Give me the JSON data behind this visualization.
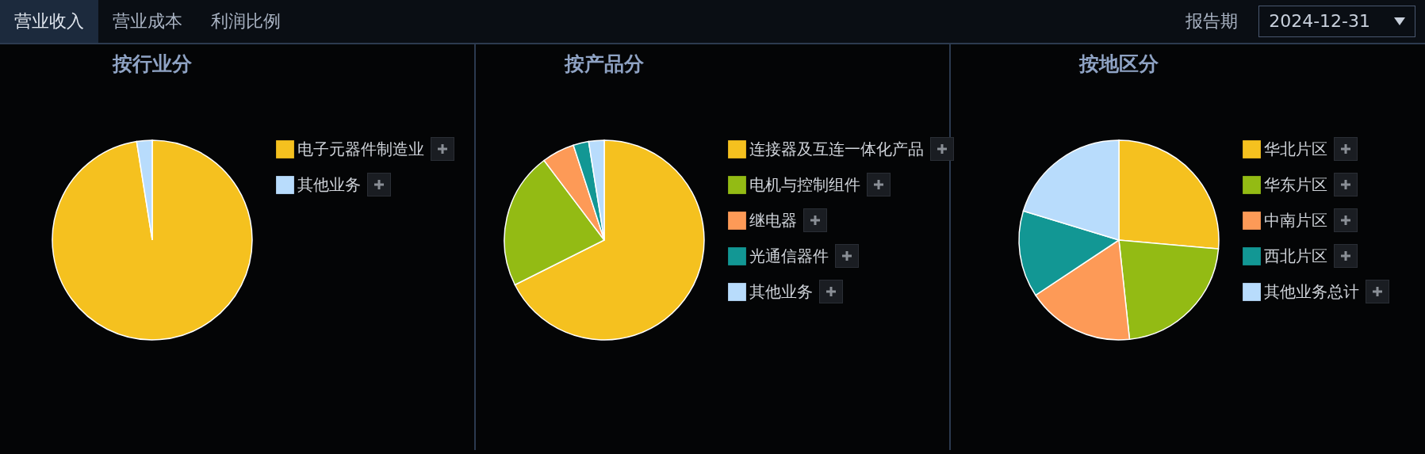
{
  "chart_data": [
    {
      "type": "other",
      "annotations": [
        "营业收入",
        "营业成本",
        "利润比例",
        "报告期",
        "2024-12-31"
      ]
    },
    {
      "type": "pie",
      "title": "按行业分",
      "categories": [
        "电子元器件制造业",
        "其他业务"
      ],
      "values": [
        97.5,
        2.5
      ],
      "colors": [
        "#f5c11f",
        "#b8dcfc"
      ],
      "legend": "right"
    },
    {
      "type": "pie",
      "title": "按产品分",
      "categories": [
        "连接器及互连一体化产品",
        "电机与控制组件",
        "继电器",
        "光通信器件",
        "其他业务"
      ],
      "values": [
        67.6,
        22.1,
        5.3,
        2.5,
        2.5
      ],
      "colors": [
        "#f5c11f",
        "#93bb14",
        "#fd9a57",
        "#129794",
        "#b8dcfc"
      ],
      "legend": "right"
    },
    {
      "type": "pie",
      "title": "按地区分",
      "categories": [
        "华北片区",
        "华东片区",
        "中南片区",
        "西北片区",
        "其他业务总计"
      ],
      "values": [
        26.4,
        21.9,
        17.4,
        14.0,
        20.3
      ],
      "colors": [
        "#f5c11f",
        "#93bb14",
        "#fd9a57",
        "#129794",
        "#b8dcfc"
      ],
      "legend": "right"
    }
  ]
}
